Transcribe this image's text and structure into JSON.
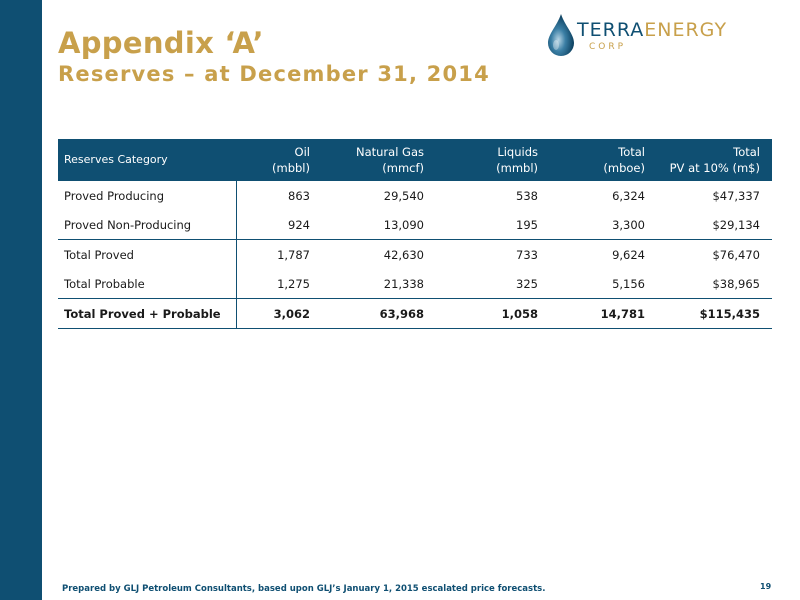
{
  "slide": {
    "title": "Appendix ‘A’",
    "subtitle": "Reserves – at December 31, 2014",
    "footnote": "Prepared by GLJ Petroleum Consultants, based upon GLJ’s January 1, 2015 escalated price forecasts.",
    "page_number": "19"
  },
  "logo": {
    "name_part1": "TERRA",
    "name_part2": "ENERGY",
    "corp": "CORP",
    "icon": "water-drop-icon"
  },
  "colors": {
    "navy": "#0f4f72",
    "gold": "#c8a04b"
  },
  "table": {
    "headers": [
      {
        "line1": "Reserves Category",
        "line2": ""
      },
      {
        "line1": "Oil",
        "line2": "(mbbl)"
      },
      {
        "line1": "Natural Gas",
        "line2": "(mmcf)"
      },
      {
        "line1": "Liquids",
        "line2": "(mmbl)"
      },
      {
        "line1": "Total",
        "line2": "(mboe)"
      },
      {
        "line1": "Total",
        "line2": "PV at 10% (m$)"
      }
    ],
    "rows": [
      {
        "category": "Proved Producing",
        "oil": "863",
        "gas": "29,540",
        "liquids": "538",
        "total_mboe": "6,324",
        "pv10": "$47,337"
      },
      {
        "category": "Proved Non-Producing",
        "oil": "924",
        "gas": "13,090",
        "liquids": "195",
        "total_mboe": "3,300",
        "pv10": "$29,134"
      },
      {
        "category": "Total Proved",
        "oil": "1,787",
        "gas": "42,630",
        "liquids": "733",
        "total_mboe": "9,624",
        "pv10": "$76,470"
      },
      {
        "category": "Total Probable",
        "oil": "1,275",
        "gas": "21,338",
        "liquids": "325",
        "total_mboe": "5,156",
        "pv10": "$38,965"
      },
      {
        "category": "Total Proved  + Probable",
        "oil": "3,062",
        "gas": "63,968",
        "liquids": "1,058",
        "total_mboe": "14,781",
        "pv10": "$115,435"
      }
    ]
  }
}
